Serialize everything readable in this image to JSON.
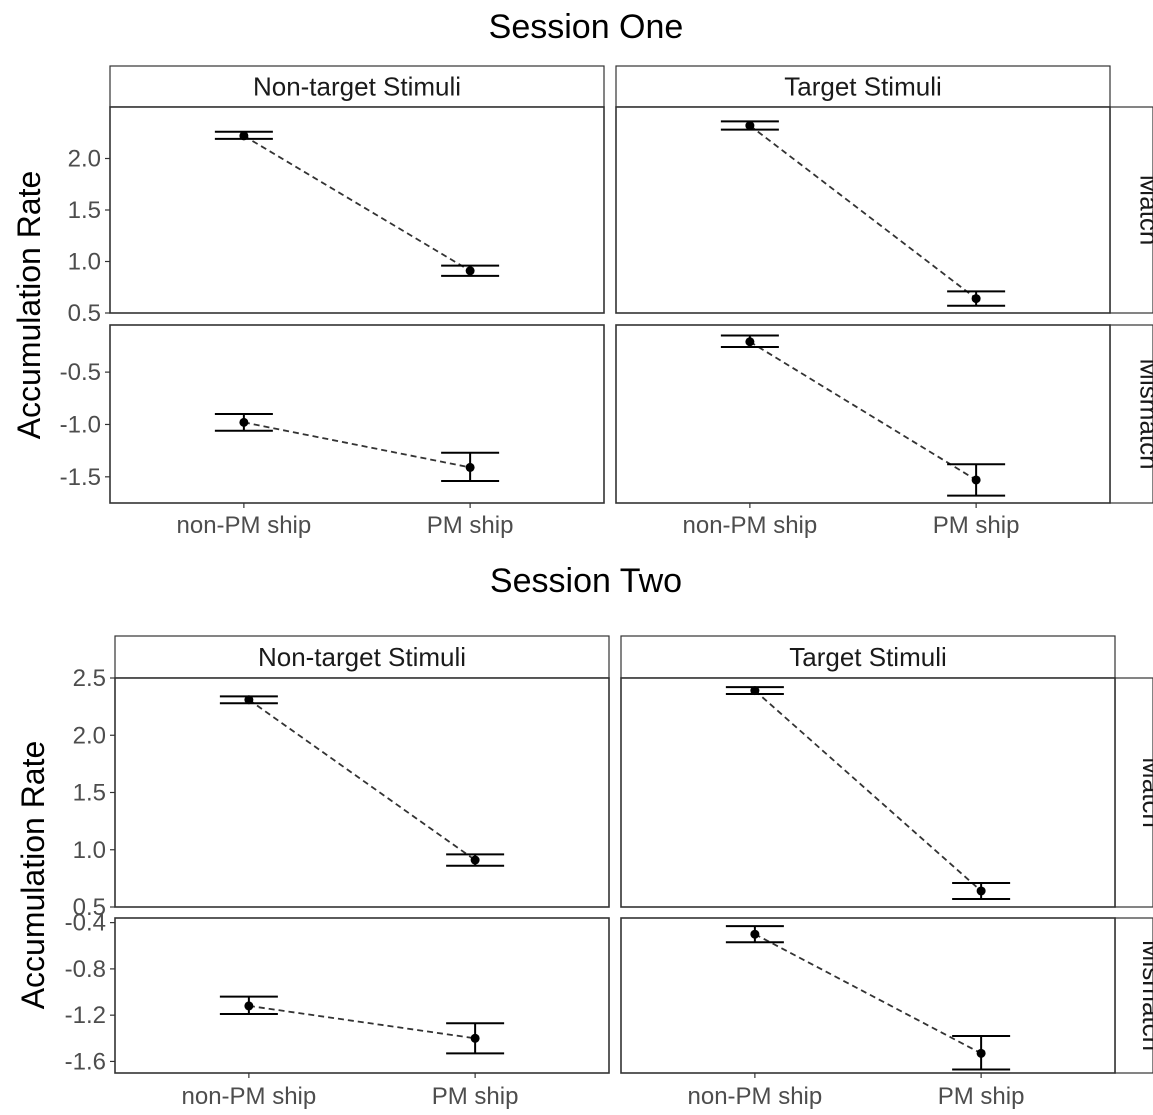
{
  "chart_data": [
    {
      "type": "line",
      "title": "Session One",
      "ylabel": "Accumulation Rate",
      "xlabel": "",
      "categories": [
        "non-PM ship",
        "PM ship"
      ],
      "columns": [
        "Non-target Stimuli",
        "Target Stimuli"
      ],
      "rows": [
        {
          "label": "Match",
          "ylim": [
            0.5,
            2.5
          ],
          "yticks": [
            0.5,
            1.0,
            1.5,
            2.0
          ],
          "ytick_labels": [
            "0.5",
            "1.0",
            "1.5",
            "2.0"
          ],
          "panels": [
            {
              "column": "Non-target Stimuli",
              "means": [
                2.22,
                0.91
              ],
              "lower": [
                2.19,
                0.86
              ],
              "upper": [
                2.26,
                0.96
              ]
            },
            {
              "column": "Target Stimuli",
              "means": [
                2.32,
                0.64
              ],
              "lower": [
                2.28,
                0.57
              ],
              "upper": [
                2.36,
                0.71
              ]
            }
          ]
        },
        {
          "label": "Mismatch",
          "ylim": [
            -1.75,
            -0.05
          ],
          "yticks": [
            -1.5,
            -1.0,
            -0.5
          ],
          "ytick_labels": [
            "-1.5",
            "-1.0",
            "-0.5"
          ],
          "panels": [
            {
              "column": "Non-target Stimuli",
              "means": [
                -0.98,
                -1.41
              ],
              "lower": [
                -1.06,
                -1.54
              ],
              "upper": [
                -0.9,
                -1.27
              ]
            },
            {
              "column": "Target Stimuli",
              "means": [
                -0.21,
                -1.53
              ],
              "lower": [
                -0.26,
                -1.68
              ],
              "upper": [
                -0.15,
                -1.38
              ]
            }
          ]
        }
      ]
    },
    {
      "type": "line",
      "title": "Session Two",
      "ylabel": "Accumulation Rate",
      "xlabel": "",
      "categories": [
        "non-PM ship",
        "PM ship"
      ],
      "columns": [
        "Non-target Stimuli",
        "Target Stimuli"
      ],
      "rows": [
        {
          "label": "Match",
          "ylim": [
            0.5,
            2.5
          ],
          "yticks": [
            0.5,
            1.0,
            1.5,
            2.0,
            2.5
          ],
          "ytick_labels": [
            "0.5",
            "1.0",
            "1.5",
            "2.0",
            "2.5"
          ],
          "panels": [
            {
              "column": "Non-target Stimuli",
              "means": [
                2.31,
                0.91
              ],
              "lower": [
                2.28,
                0.86
              ],
              "upper": [
                2.34,
                0.96
              ]
            },
            {
              "column": "Target Stimuli",
              "means": [
                2.39,
                0.64
              ],
              "lower": [
                2.36,
                0.57
              ],
              "upper": [
                2.42,
                0.71
              ]
            }
          ]
        },
        {
          "label": "Mismatch",
          "ylim": [
            -1.7,
            -0.36
          ],
          "yticks": [
            -1.6,
            -1.2,
            -0.8,
            -0.4
          ],
          "ytick_labels": [
            "-1.6",
            "-1.2",
            "-0.8",
            "-0.4"
          ],
          "panels": [
            {
              "column": "Non-target Stimuli",
              "means": [
                -1.12,
                -1.4
              ],
              "lower": [
                -1.19,
                -1.53
              ],
              "upper": [
                -1.04,
                -1.27
              ]
            },
            {
              "column": "Target Stimuli",
              "means": [
                -0.5,
                -1.53
              ],
              "lower": [
                -0.57,
                -1.67
              ],
              "upper": [
                -0.43,
                -1.38
              ]
            }
          ]
        }
      ]
    }
  ]
}
